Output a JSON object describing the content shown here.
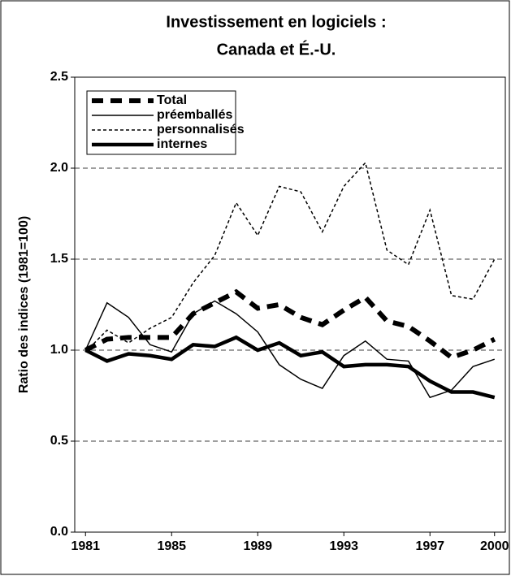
{
  "chart_data": {
    "type": "line",
    "title": "Investissement en logiciels :",
    "subtitle": "Canada et É.-U.",
    "y_label": "Ratio des indices (1981=100)",
    "x": [
      1981,
      1982,
      1983,
      1984,
      1985,
      1986,
      1987,
      1988,
      1989,
      1990,
      1991,
      1992,
      1993,
      1994,
      1995,
      1996,
      1997,
      1998,
      1999,
      2000
    ],
    "xlim": [
      1980.5,
      2000.5
    ],
    "xticks": [
      1981,
      1985,
      1989,
      1993,
      1997,
      2000
    ],
    "ylim": [
      0,
      2.5
    ],
    "yticks": [
      {
        "value": 0,
        "label": "0.0"
      },
      0.5,
      {
        "value": 1,
        "label": "1.0"
      },
      1.5,
      {
        "value": 2,
        "label": "2.0"
      },
      2.5
    ],
    "grid": true,
    "legend": "upper left",
    "series": [
      {
        "name": "Total",
        "color": "#000000",
        "style": "dashed-thick",
        "values": [
          1.0,
          1.06,
          1.07,
          1.07,
          1.07,
          1.2,
          1.26,
          1.32,
          1.23,
          1.25,
          1.18,
          1.14,
          1.22,
          1.29,
          1.16,
          1.13,
          1.05,
          0.96,
          1.0,
          1.06
        ]
      },
      {
        "name": "préemballés",
        "color": "#000000",
        "style": "solid-thin",
        "values": [
          1.0,
          1.26,
          1.18,
          1.03,
          0.99,
          1.2,
          1.27,
          1.2,
          1.1,
          0.92,
          0.84,
          0.79,
          0.97,
          1.05,
          0.95,
          0.94,
          0.74,
          0.78,
          0.91,
          0.95
        ]
      },
      {
        "name": "personnalisés",
        "color": "#000000",
        "style": "dotted",
        "values": [
          0.99,
          1.11,
          1.04,
          1.12,
          1.18,
          1.37,
          1.52,
          1.81,
          1.63,
          1.9,
          1.87,
          1.65,
          1.9,
          2.03,
          1.55,
          1.47,
          1.77,
          1.3,
          1.28,
          1.5
        ]
      },
      {
        "name": "internes",
        "color": "#000000",
        "style": "solid-thick",
        "values": [
          1.0,
          0.94,
          0.98,
          0.97,
          0.95,
          1.03,
          1.02,
          1.07,
          1.0,
          1.04,
          0.97,
          0.99,
          0.91,
          0.92,
          0.92,
          0.91,
          0.83,
          0.77,
          0.77,
          0.74
        ]
      }
    ]
  }
}
